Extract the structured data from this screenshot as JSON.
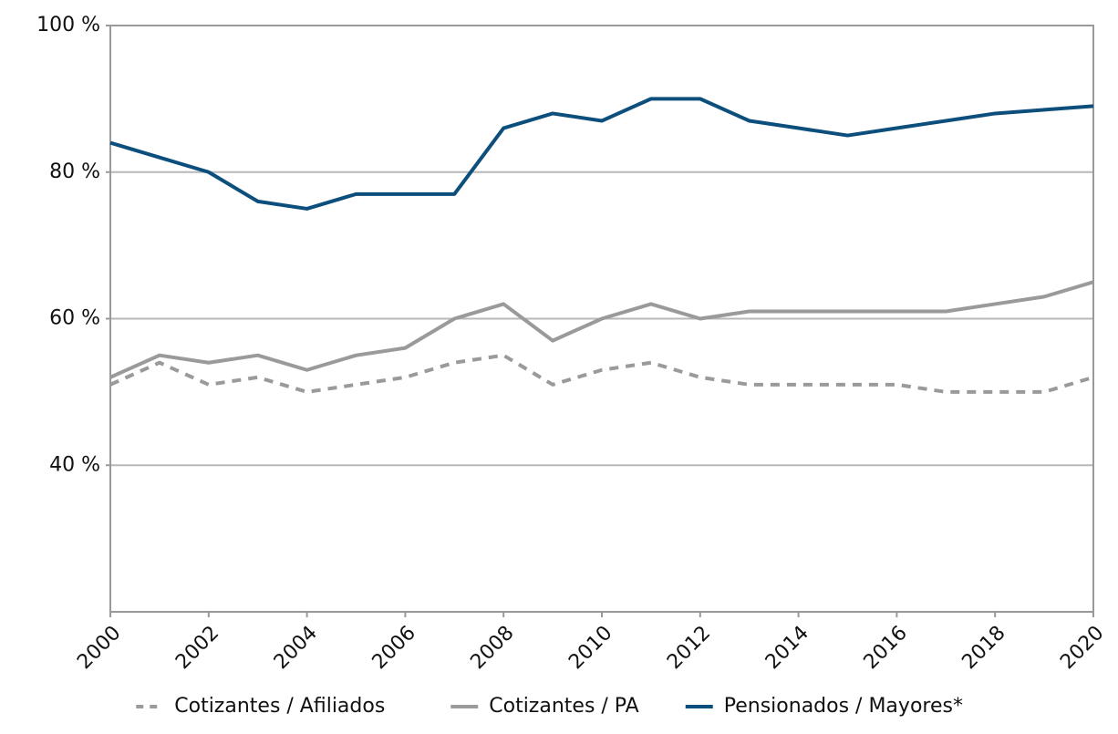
{
  "chart_data": {
    "type": "line",
    "x": [
      2000,
      2001,
      2002,
      2003,
      2004,
      2005,
      2006,
      2007,
      2008,
      2009,
      2010,
      2011,
      2012,
      2013,
      2014,
      2015,
      2016,
      2017,
      2018,
      2019,
      2020
    ],
    "series": [
      {
        "name": "Cotizantes / Afiliados",
        "color": "#9a9a9a",
        "dashed": true,
        "values": [
          51,
          54,
          51,
          52,
          50,
          51,
          52,
          54,
          55,
          51,
          53,
          54,
          52,
          51,
          51,
          51,
          51,
          50,
          50,
          50,
          52
        ]
      },
      {
        "name": "Cotizantes / PA",
        "color": "#9a9a9a",
        "dashed": false,
        "values": [
          52,
          55,
          54,
          55,
          53,
          55,
          56,
          60,
          62,
          57,
          60,
          62,
          60,
          61,
          61,
          61,
          61,
          61,
          62,
          63,
          65
        ]
      },
      {
        "name": "Pensionados / Mayores*",
        "color": "#0d4f7c",
        "dashed": false,
        "values": [
          84,
          82,
          80,
          76,
          75,
          77,
          77,
          77,
          86,
          88,
          87,
          90,
          90,
          87,
          86,
          85,
          86,
          87,
          88,
          88.5,
          89
        ]
      }
    ],
    "xlim": [
      2000,
      2020
    ],
    "xticks": [
      2000,
      2002,
      2004,
      2006,
      2008,
      2010,
      2012,
      2014,
      2016,
      2018,
      2020
    ],
    "ylim": [
      20,
      100
    ],
    "yticks": [
      {
        "value": 40,
        "label": "40 %"
      },
      {
        "value": 60,
        "label": "60 %"
      },
      {
        "value": 80,
        "label": "80 %"
      },
      {
        "value": 100,
        "label": "100 %"
      }
    ],
    "grid": true,
    "legend": "bottom"
  }
}
